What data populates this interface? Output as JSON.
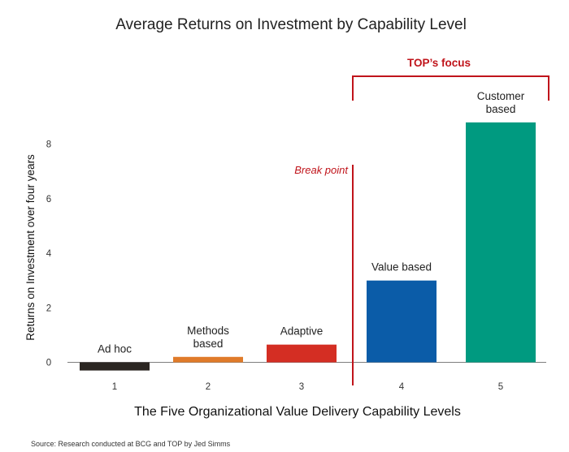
{
  "chart_data": {
    "type": "bar",
    "title": "Average Returns on Investment by Capability Level",
    "xlabel": "The Five Organizational Value Delivery Capability Levels",
    "ylabel": "Returns on Investment over four years",
    "categories": [
      "1",
      "2",
      "3",
      "4",
      "5"
    ],
    "values": [
      -0.3,
      0.2,
      0.65,
      3.0,
      8.8
    ],
    "bar_labels": [
      [
        "Ad hoc"
      ],
      [
        "Methods",
        "based"
      ],
      [
        "Adaptive"
      ],
      [
        "Value based"
      ],
      [
        "Customer",
        "based"
      ]
    ],
    "colors": [
      "#2b2622",
      "#e07b2a",
      "#d42e23",
      "#0b5ca8",
      "#009a80"
    ],
    "yticks": [
      0,
      2,
      4,
      6,
      8
    ],
    "ylim": [
      -0.6,
      9.2
    ],
    "grid": false,
    "annotations": {
      "break_point_label": "Break point",
      "focus_label": "TOP’s focus",
      "accent_color": "#c0141b"
    }
  },
  "source": "Source: Research conducted at BCG and TOP by  Jed Simms"
}
